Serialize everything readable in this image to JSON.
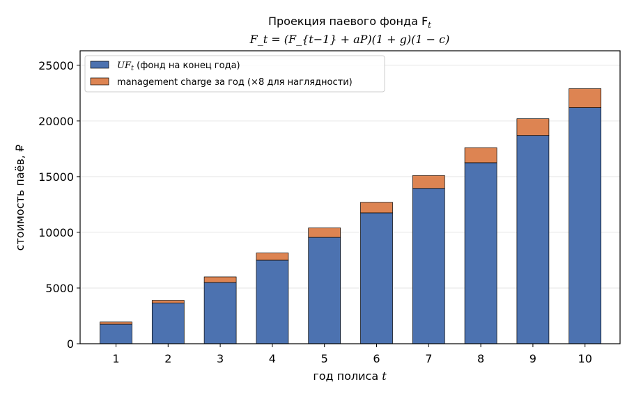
{
  "chart_data": {
    "type": "bar",
    "stacked": true,
    "title_line1": "Проекция паевого фонда F",
    "title_line1_sub": "t",
    "title_line2": "F_t = (F_{t−1} + aP)(1 + g)(1 − c)",
    "xlabel": "год полиса",
    "xlabel_var": "t",
    "ylabel": "стоимость паёв, ₽",
    "categories": [
      "1",
      "2",
      "3",
      "4",
      "5",
      "6",
      "7",
      "8",
      "9",
      "10"
    ],
    "ylim": [
      0,
      26300
    ],
    "yticks": [
      0,
      5000,
      10000,
      15000,
      20000,
      25000
    ],
    "grid": "y",
    "legend_position": "top-left",
    "series": [
      {
        "name": "фонд на конец года",
        "name_prefix": "UF",
        "name_sub": "t",
        "color": "#4c72b0",
        "values": [
          1750,
          3650,
          5500,
          7500,
          9550,
          11750,
          13950,
          16250,
          18700,
          21200
        ]
      },
      {
        "name": "management charge за год (×8 для наглядности)",
        "color": "#dd8452",
        "values": [
          200,
          250,
          500,
          650,
          850,
          950,
          1150,
          1350,
          1500,
          1700
        ]
      }
    ]
  }
}
